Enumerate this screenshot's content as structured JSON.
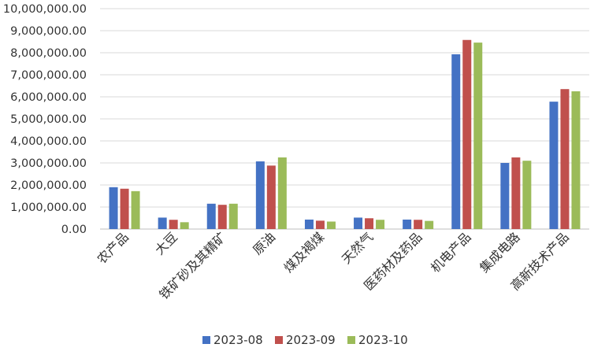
{
  "chart_data": {
    "type": "bar",
    "categories": [
      "农产品",
      "大豆",
      "铁矿砂及其精矿",
      "原油",
      "煤及褐煤",
      "天然气",
      "医药材及药品",
      "机电产品",
      "集成电路",
      "高新技术产品"
    ],
    "series": [
      {
        "name": "2023-08",
        "color": "#4472c4",
        "values": [
          1900000,
          520000,
          1150000,
          3070000,
          430000,
          520000,
          430000,
          7930000,
          3000000,
          5780000
        ]
      },
      {
        "name": "2023-09",
        "color": "#c0504d",
        "values": [
          1830000,
          420000,
          1100000,
          2880000,
          380000,
          490000,
          420000,
          8580000,
          3250000,
          6350000
        ]
      },
      {
        "name": "2023-10",
        "color": "#9bbb59",
        "values": [
          1720000,
          310000,
          1150000,
          3250000,
          340000,
          420000,
          370000,
          8460000,
          3100000,
          6250000
        ]
      }
    ],
    "y_ticks": [
      "0.00",
      "1,000,000.00",
      "2,000,000.00",
      "3,000,000.00",
      "4,000,000.00",
      "5,000,000.00",
      "6,000,000.00",
      "7,000,000.00",
      "8,000,000.00",
      "9,000,000.00",
      "10,000,000.00"
    ],
    "ylim": [
      0,
      10000000
    ],
    "grid": true,
    "legend_position": "bottom"
  }
}
